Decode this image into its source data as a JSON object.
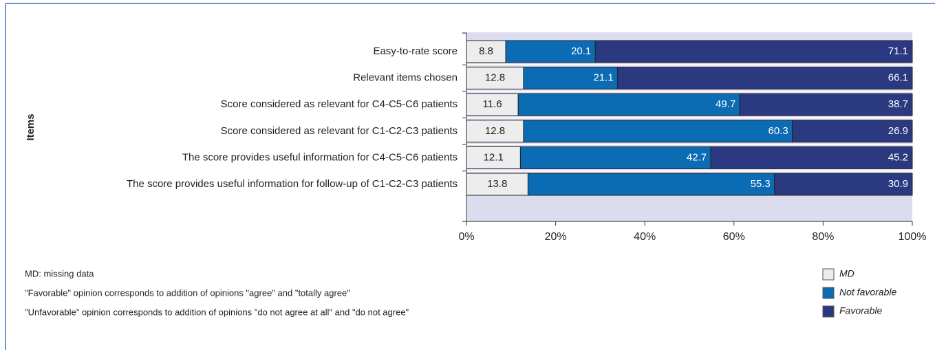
{
  "chart_data": {
    "type": "stacked_barh",
    "y_label": "Items",
    "categories": [
      "Easy-to-rate score",
      "Relevant items chosen",
      "Score considered as relevant for C4-C5-C6 patients",
      "Score considered as relevant for C1-C2-C3 patients",
      "The score provides useful information for C4-C5-C6 patients",
      "The score provides useful information for follow-up of C1-C2-C3 patients"
    ],
    "series": [
      {
        "name": "MD",
        "color": "#ededed",
        "values": [
          8.8,
          12.8,
          11.6,
          12.8,
          12.1,
          13.8
        ]
      },
      {
        "name": "Not favorable",
        "color": "#0b6bb3",
        "values": [
          20.1,
          21.1,
          49.7,
          60.3,
          42.7,
          55.3
        ]
      },
      {
        "name": "Favorable",
        "color": "#2b3a80",
        "values": [
          71.1,
          66.1,
          38.7,
          26.9,
          45.2,
          30.9
        ]
      }
    ],
    "xlim": [
      0,
      100
    ],
    "xticks": [
      {
        "value": 0,
        "label": "0%"
      },
      {
        "value": 20,
        "label": "20%"
      },
      {
        "value": 40,
        "label": "40%"
      },
      {
        "value": 60,
        "label": "60%"
      },
      {
        "value": 80,
        "label": "80%"
      },
      {
        "value": 100,
        "label": "100%"
      }
    ],
    "notes": [
      "MD: missing data",
      "\"Favorable\" opinion corresponds to addition of opinions \"agree\" and \"totally agree\"",
      "\"Unfavorable\" opinion corresponds to addition of opinions \"do not agree at all\" and \"do not agree\""
    ]
  }
}
